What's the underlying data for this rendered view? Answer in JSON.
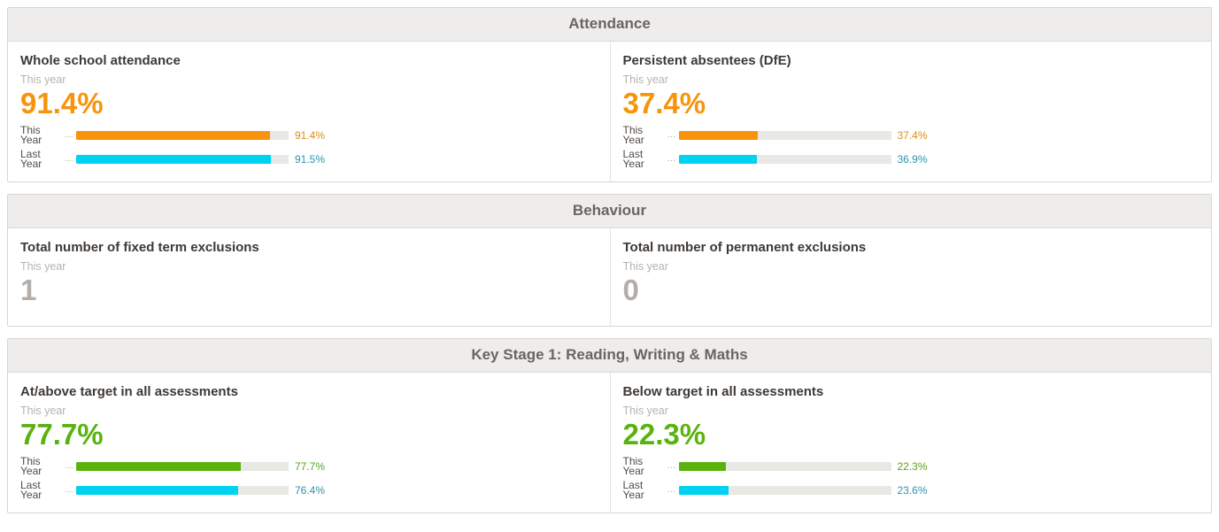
{
  "colors": {
    "orange": "#f8940c",
    "orange_text": "#d98d1b",
    "cyan": "#00d3f2",
    "teal_text": "#2e93ad",
    "green": "#59b30f",
    "green_text": "#55a518",
    "gray_number": "#b4aeaa"
  },
  "sections": [
    {
      "title": "Attendance",
      "panels": [
        {
          "title": "Whole school attendance",
          "subtitle": "This year",
          "headline": "91.4%",
          "headline_color": "#f8940c",
          "bars": [
            {
              "label": "This Year",
              "dots": "…",
              "value_pct": 91.4,
              "display": "91.4%",
              "bar_color": "#f8940c",
              "text_color": "#d98d1b"
            },
            {
              "label": "Last Year",
              "dots": "…",
              "value_pct": 91.5,
              "display": "91.5%",
              "bar_color": "#00d3f2",
              "text_color": "#2e93ad"
            }
          ]
        },
        {
          "title": "Persistent absentees (DfE)",
          "subtitle": "This year",
          "headline": "37.4%",
          "headline_color": "#f8940c",
          "bars": [
            {
              "label": "This Year",
              "dots": "…",
              "value_pct": 37.4,
              "display": "37.4%",
              "bar_color": "#f8940c",
              "text_color": "#d98d1b"
            },
            {
              "label": "Last Year",
              "dots": "…",
              "value_pct": 36.9,
              "display": "36.9%",
              "bar_color": "#00d3f2",
              "text_color": "#2e93ad"
            }
          ]
        }
      ]
    },
    {
      "title": "Behaviour",
      "panels": [
        {
          "title": "Total number of fixed term exclusions",
          "subtitle": "This year",
          "headline": "1",
          "headline_color": "#b4aeaa"
        },
        {
          "title": "Total number of permanent exclusions",
          "subtitle": "This year",
          "headline": "0",
          "headline_color": "#b4aeaa"
        }
      ]
    },
    {
      "title": "Key Stage 1: Reading, Writing & Maths",
      "panels": [
        {
          "title": "At/above target in all assessments",
          "subtitle": "This year",
          "headline": "77.7%",
          "headline_color": "#59b30f",
          "bars": [
            {
              "label": "This Year",
              "dots": "…",
              "value_pct": 77.7,
              "display": "77.7%",
              "bar_color": "#59b30f",
              "text_color": "#55a518"
            },
            {
              "label": "Last Year",
              "dots": "…",
              "value_pct": 76.4,
              "display": "76.4%",
              "bar_color": "#00d3f2",
              "text_color": "#2e93ad"
            }
          ]
        },
        {
          "title": "Below target in all assessments",
          "subtitle": "This year",
          "headline": "22.3%",
          "headline_color": "#59b30f",
          "bars": [
            {
              "label": "This Year",
              "dots": "…",
              "value_pct": 22.3,
              "display": "22.3%",
              "bar_color": "#59b30f",
              "text_color": "#55a518"
            },
            {
              "label": "Last Year",
              "dots": "…",
              "value_pct": 23.6,
              "display": "23.6%",
              "bar_color": "#00d3f2",
              "text_color": "#2e93ad"
            }
          ]
        }
      ]
    }
  ]
}
